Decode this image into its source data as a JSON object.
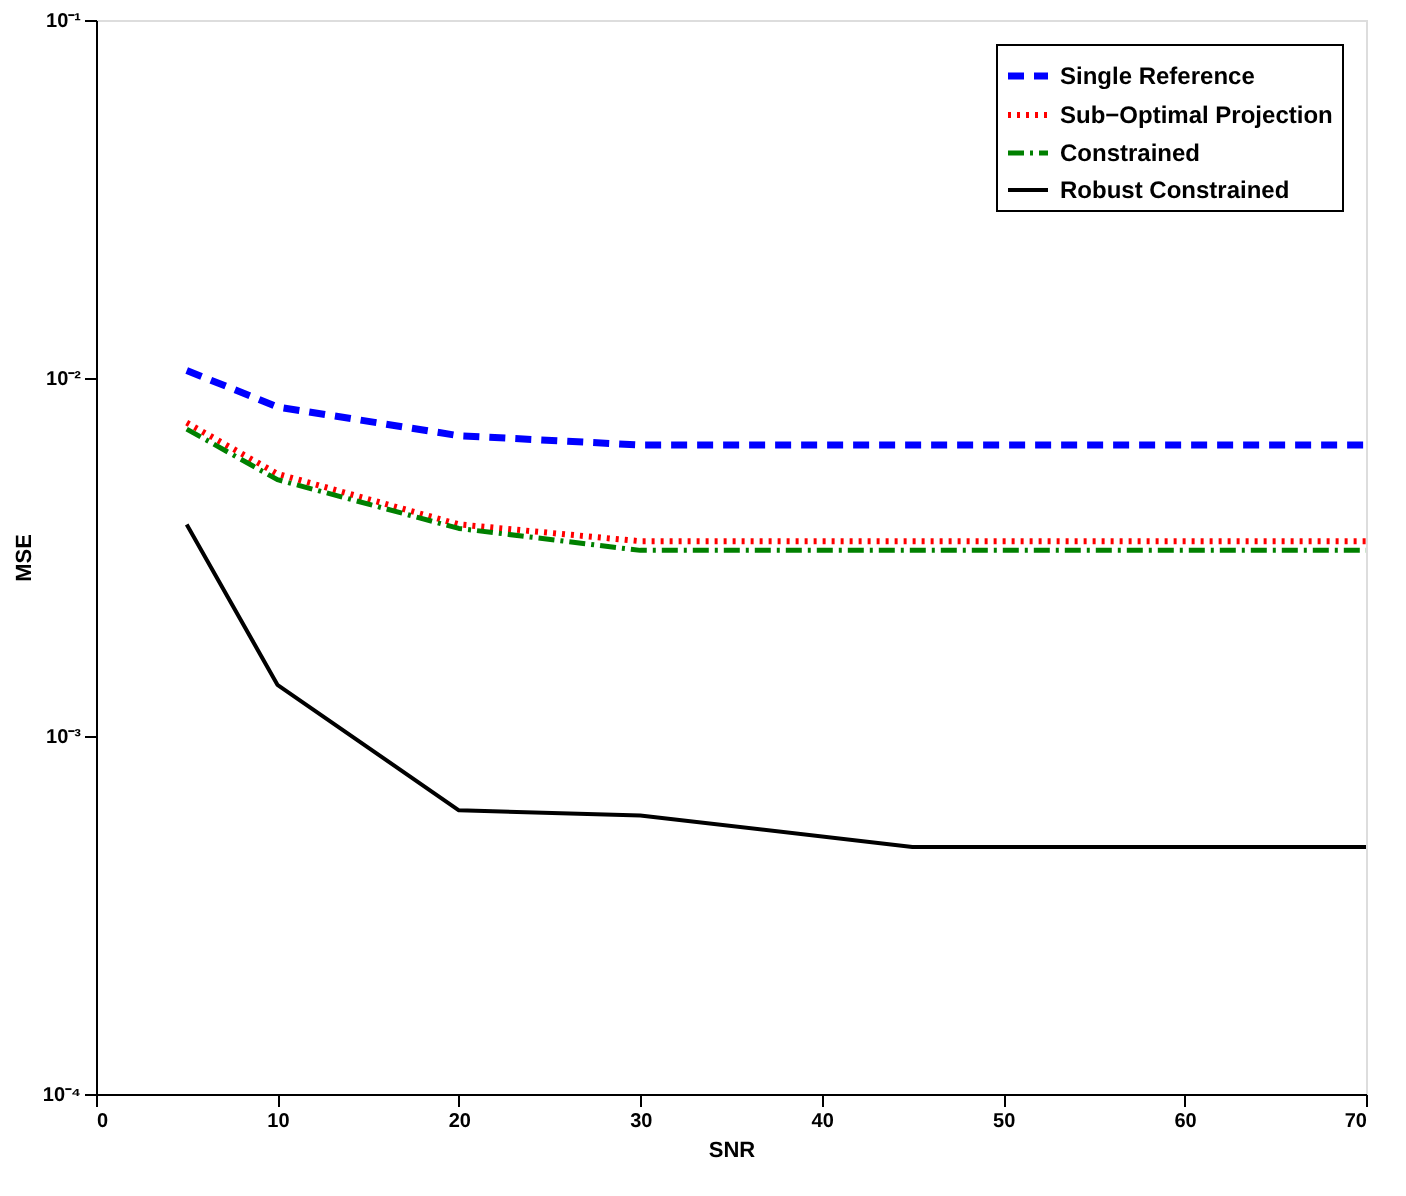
{
  "chart_data": {
    "type": "line",
    "xlabel": "SNR",
    "ylabel": "MSE",
    "log": "y",
    "xlim": [
      0,
      70
    ],
    "xticks": [
      0,
      10,
      20,
      30,
      40,
      50,
      60,
      70
    ],
    "ylim": [
      0.0001,
      0.1
    ],
    "yticks": [
      {
        "value": 0.0001,
        "label": "10⁻⁴"
      },
      {
        "value": 0.001,
        "label": "10⁻³"
      },
      {
        "value": 0.01,
        "label": "10⁻²"
      },
      {
        "value": 0.1,
        "label": "10⁻¹"
      }
    ],
    "grid": false,
    "legend": "top right",
    "marker": "none",
    "series": [
      {
        "name": "Single Reference",
        "color": "#0000ff",
        "line_style": "dashed",
        "x": [
          5,
          10,
          20,
          30,
          45,
          70
        ],
        "values": [
          0.0105,
          0.0083,
          0.0069,
          0.0065,
          0.0065,
          0.0065
        ]
      },
      {
        "name": "Sub−Optimal Projection",
        "color": "#ff0000",
        "line_style": "dotted",
        "x": [
          5,
          10,
          20,
          30,
          45,
          70
        ],
        "values": [
          0.0075,
          0.0054,
          0.0039,
          0.0035,
          0.0035,
          0.0035
        ]
      },
      {
        "name": "Constrained",
        "color": "#008000",
        "line_style": "dashdot",
        "x": [
          5,
          10,
          20,
          30,
          45,
          70
        ],
        "values": [
          0.0072,
          0.0052,
          0.0038,
          0.0033,
          0.0033,
          0.0033
        ]
      },
      {
        "name": "Robust Constrained",
        "color": "#000000",
        "line_style": "solid",
        "x": [
          5,
          10,
          20,
          30,
          45,
          70
        ],
        "values": [
          0.0039,
          0.00139,
          0.00062,
          0.0006,
          0.00049,
          0.00049
        ]
      }
    ]
  }
}
